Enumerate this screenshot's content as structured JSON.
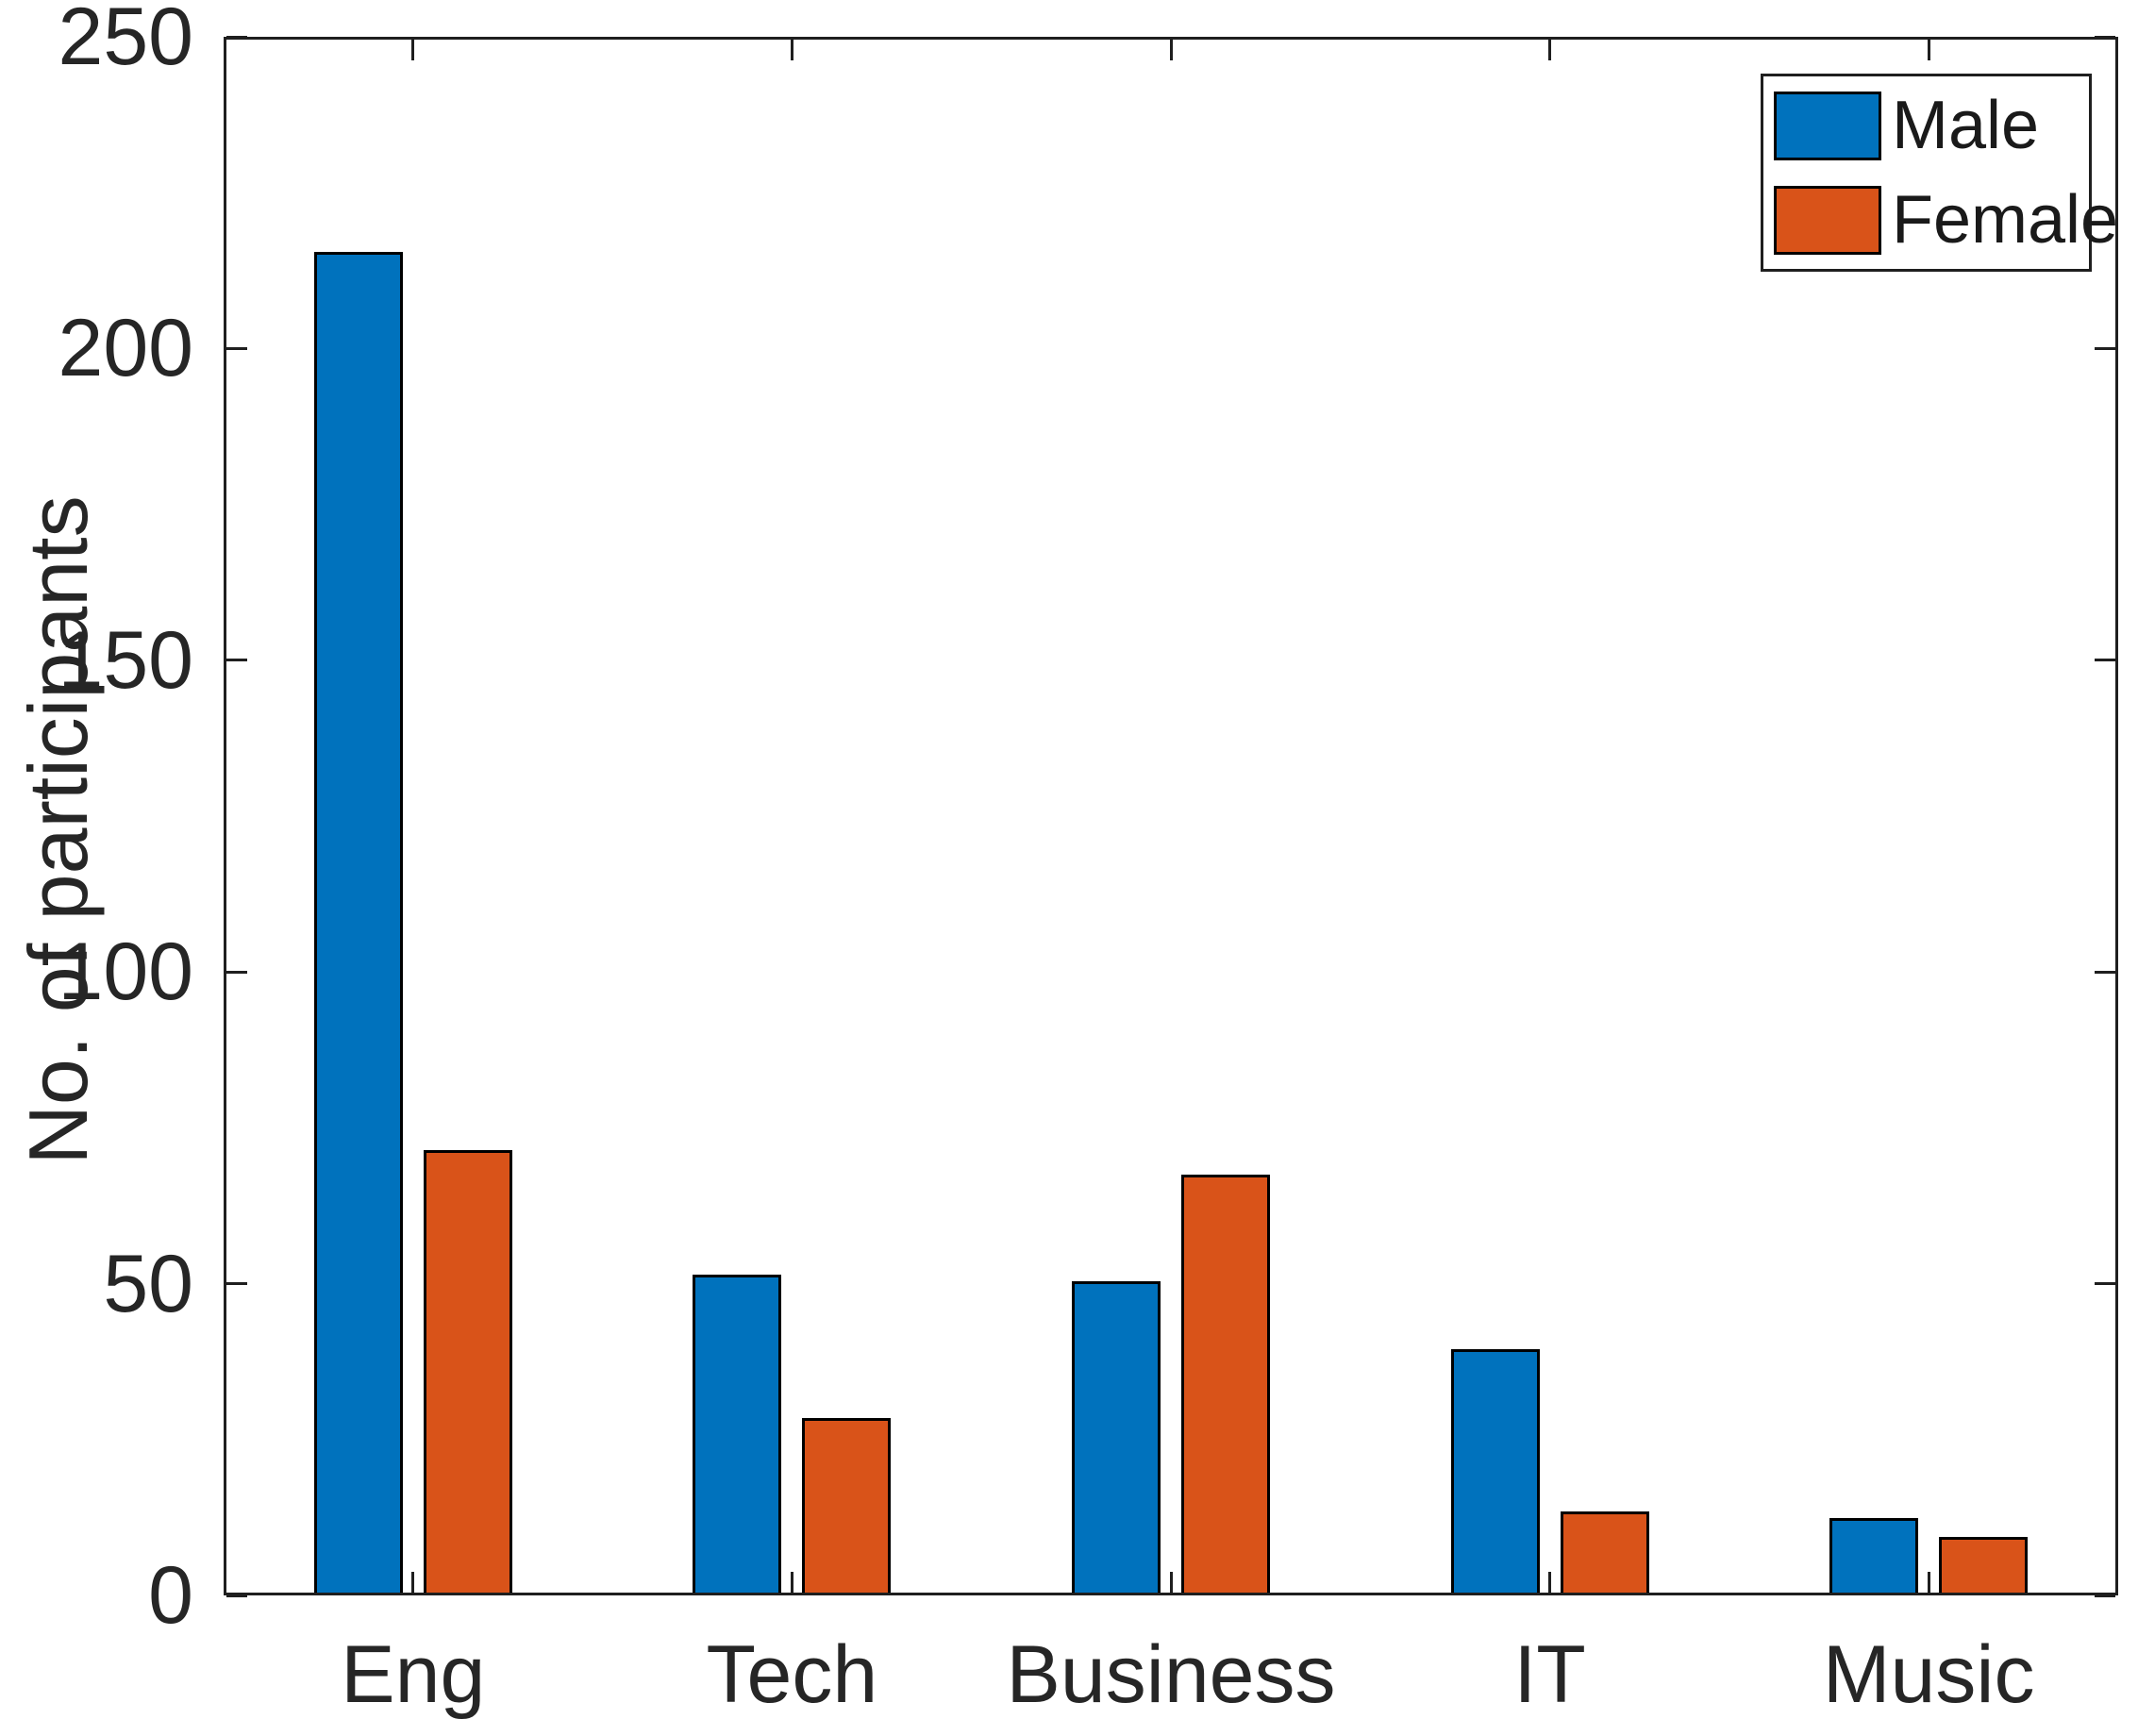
{
  "chart_data": {
    "type": "bar",
    "title": "",
    "categories": [
      "Eng",
      "Tech",
      "Business",
      "IT",
      "Music"
    ],
    "series": [
      {
        "name": "Male",
        "color": "#0072BD",
        "values": [
          215,
          51,
          50,
          39,
          12
        ]
      },
      {
        "name": "Female",
        "color": "#D95319",
        "values": [
          71,
          28,
          67,
          13,
          9
        ]
      }
    ],
    "xlabel": "",
    "ylabel": "No. of participants",
    "ylim": [
      0,
      250
    ],
    "yticks": [
      0,
      50,
      100,
      150,
      200,
      250
    ],
    "grid": false,
    "legend": {
      "position": "top-right",
      "entries": [
        "Male",
        "Female"
      ]
    },
    "bar_edge_color": "#000000",
    "axis_color": "#1f1f1f",
    "background": "#ffffff"
  }
}
